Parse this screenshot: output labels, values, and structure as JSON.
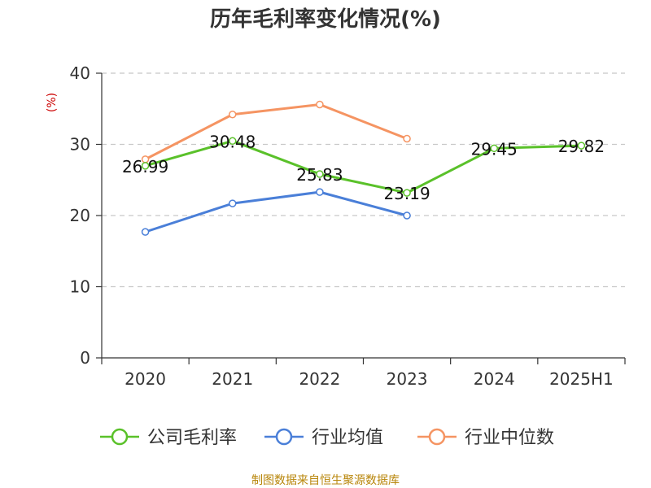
{
  "title": "历年毛利率变化情况(%)",
  "source": "制图数据来自恒生聚源数据库",
  "chart_data": {
    "type": "line",
    "title": "历年毛利率变化情况(%)",
    "ylabel": "(%)",
    "xlabel": "",
    "categories": [
      "2020",
      "2021",
      "2022",
      "2023",
      "2024",
      "2025H1"
    ],
    "ylim": [
      0,
      40
    ],
    "yticks": [
      0,
      10,
      20,
      30,
      40
    ],
    "grid": true,
    "legend_position": "bottom",
    "series": [
      {
        "name": "公司毛利率",
        "color": "#5ac12a",
        "values": [
          26.99,
          30.48,
          25.83,
          23.19,
          29.45,
          29.82
        ],
        "labels": [
          "26.99",
          "30.48",
          "25.83",
          "23.19",
          "29.45",
          "29.82"
        ]
      },
      {
        "name": "行业均值",
        "color": "#4a7fd8",
        "values": [
          17.7,
          21.7,
          23.3,
          20.0,
          null,
          null
        ]
      },
      {
        "name": "行业中位数",
        "color": "#f59462",
        "values": [
          27.9,
          34.2,
          35.6,
          30.8,
          null,
          null
        ]
      }
    ]
  }
}
